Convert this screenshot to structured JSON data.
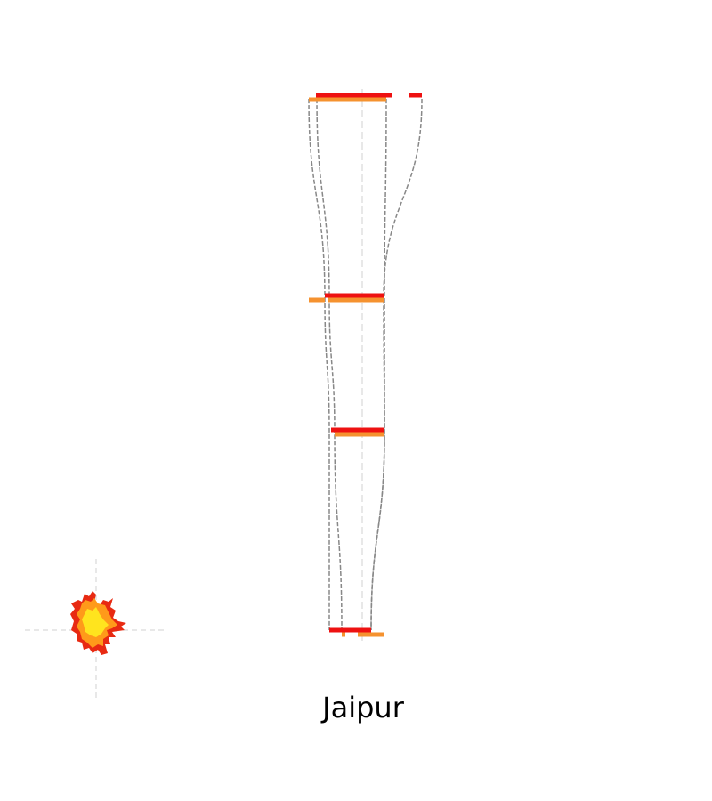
{
  "title": "Jaipur",
  "colors": {
    "primary": "#ee1111",
    "secondary": "#f5922f",
    "connector": "#888888",
    "guide": "#d0d0d0",
    "blob_outer": "#e82a12",
    "blob_mid": "#ff9a1a",
    "blob_inner": "#ffe41e"
  },
  "chart_data": {
    "type": "line",
    "title": "Jaipur",
    "xlabel": "",
    "ylabel": "",
    "x_axis_visible": false,
    "y_axis_visible": false,
    "grid": false,
    "center_value": 0,
    "series": [
      {
        "name": "primary",
        "color": "#ee1111",
        "levels": [
          {
            "level": 0,
            "segments": [
              [
                -52,
                34
              ],
              [
                52,
                67
              ]
            ]
          },
          {
            "level": 1,
            "segments": [
              [
                -42,
                25
              ]
            ]
          },
          {
            "level": 2,
            "segments": [
              [
                -35,
                25
              ]
            ]
          },
          {
            "level": 3,
            "segments": [
              [
                -37,
                10
              ]
            ]
          }
        ]
      },
      {
        "name": "secondary",
        "color": "#f5922f",
        "levels": [
          {
            "level": 0,
            "segments": [
              [
                -60,
                27
              ]
            ]
          },
          {
            "level": 1,
            "segments": [
              [
                -60,
                -42
              ],
              [
                -38,
                24
              ]
            ]
          },
          {
            "level": 2,
            "segments": [
              [
                -31,
                25
              ]
            ]
          },
          {
            "level": 3,
            "segments": [
              [
                -23,
                -19
              ],
              [
                -5,
                25
              ]
            ]
          }
        ]
      }
    ],
    "flows": [
      [
        [
          -60,
          -42,
          -37,
          -37
        ],
        [
          -51,
          -37,
          -31,
          -23
        ]
      ],
      [
        [
          27,
          25,
          25,
          10
        ],
        [
          67,
          24,
          25,
          10
        ]
      ]
    ]
  }
}
